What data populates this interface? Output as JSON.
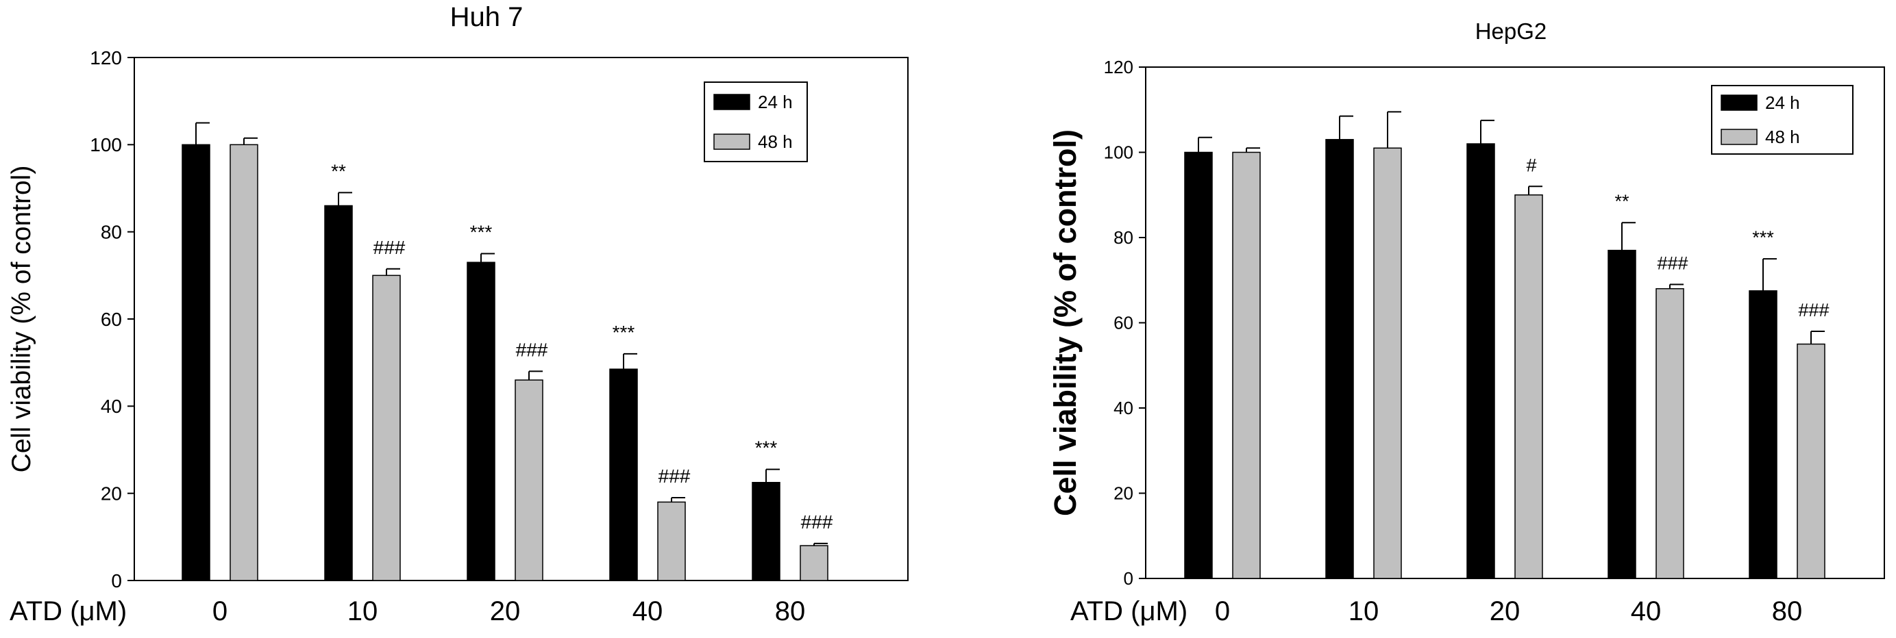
{
  "chart_data": [
    {
      "type": "bar",
      "title": "Huh 7",
      "xlabel": "ATD (μM)",
      "ylabel": "Cell viability (% of control)",
      "ylim": [
        0,
        120
      ],
      "yticks": [
        0,
        20,
        40,
        60,
        80,
        100,
        120
      ],
      "categories": [
        "0",
        "10",
        "20",
        "40",
        "80"
      ],
      "legend": {
        "position": "top-right",
        "entries": [
          "24 h",
          "48 h"
        ]
      },
      "series": [
        {
          "name": "24 h",
          "color": "#000000",
          "values": [
            100,
            86,
            73,
            48.5,
            22.5
          ],
          "errors": [
            5,
            3,
            2,
            3.5,
            3
          ],
          "annotations": [
            "",
            "**",
            "***",
            "***",
            "***"
          ]
        },
        {
          "name": "48 h",
          "color": "#c0c0c0",
          "values": [
            100,
            70,
            46,
            18,
            8
          ],
          "errors": [
            1.5,
            1.5,
            2,
            1,
            0.5
          ],
          "annotations": [
            "",
            "###",
            "###",
            "###",
            "###"
          ]
        }
      ]
    },
    {
      "type": "bar",
      "title": "HepG2",
      "xlabel": "ATD (μM)",
      "ylabel": "Cell viability (% of control)",
      "ylim": [
        0,
        120
      ],
      "yticks": [
        0,
        20,
        40,
        60,
        80,
        100,
        120
      ],
      "categories": [
        "0",
        "10",
        "20",
        "40",
        "80"
      ],
      "legend": {
        "position": "top-right",
        "entries": [
          "24 h",
          "48 h"
        ]
      },
      "series": [
        {
          "name": "24 h",
          "color": "#000000",
          "values": [
            100,
            103,
            102,
            77,
            67.5
          ],
          "errors": [
            3.5,
            5.5,
            5.5,
            6.5,
            7.5
          ],
          "annotations": [
            "",
            "",
            "",
            "**",
            "***"
          ]
        },
        {
          "name": "48 h",
          "color": "#c0c0c0",
          "values": [
            100,
            101,
            90,
            68,
            55
          ],
          "errors": [
            1,
            8.5,
            2,
            1,
            3
          ],
          "annotations": [
            "",
            "",
            "#",
            "###",
            "###"
          ]
        }
      ]
    }
  ]
}
